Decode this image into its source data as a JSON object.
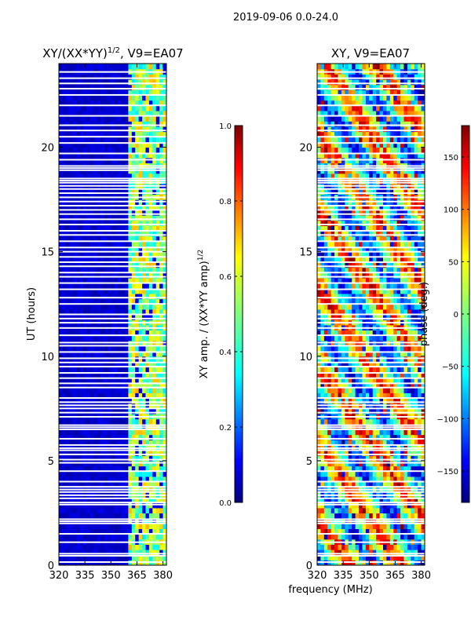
{
  "suptitle": "2019-09-06 0.0-24.0",
  "colors": {
    "jet": [
      "#00007f",
      "#0000ff",
      "#007fff",
      "#00ffff",
      "#7fff7f",
      "#ffff00",
      "#ff7f00",
      "#ff0000",
      "#7f0000"
    ],
    "background": "#ffffff",
    "gap": "#ffffff"
  },
  "chart_data": [
    {
      "type": "heatmap",
      "title_prefix": "XY/(XX*YY)",
      "title_sup": "1/2",
      "title_suffix": ", V9=EA07",
      "xlabel": "",
      "ylabel": "UT (hours)",
      "xlim": [
        320,
        382
      ],
      "ylim": [
        0,
        24
      ],
      "xticks": [
        320,
        335,
        350,
        365,
        380
      ],
      "yticks": [
        0,
        5,
        10,
        15,
        20
      ],
      "colorbar": {
        "label_text": "XY amp. / (XX*YY amp)",
        "label_sup": "1/2",
        "range": [
          0.0,
          1.0
        ],
        "ticks": [
          "0.0",
          "0.2",
          "0.4",
          "0.6",
          "0.8",
          "1.0"
        ]
      },
      "description": "Normalized cross-correlation amplitude: mostly low (~0.05) below 359 MHz, high (0.3-0.7) in bands between 360 and 380 MHz."
    },
    {
      "type": "heatmap",
      "title": "XY, V9=EA07",
      "xlabel": "frequency (MHz)",
      "ylabel": "",
      "xlim": [
        320,
        382
      ],
      "ylim": [
        0,
        24
      ],
      "xticks": [
        320,
        335,
        350,
        365,
        380
      ],
      "yticks": [
        0,
        5,
        10,
        15,
        20
      ],
      "colorbar": {
        "label_text": "phase (deg.)",
        "range": [
          -180,
          180
        ],
        "ticks": [
          "−150",
          "−100",
          "−50",
          "0",
          "50",
          "100",
          "150"
        ]
      },
      "description": "Cross-correlation phase, noisy values spanning -180 to 180 degrees."
    }
  ],
  "gaps_hours": [
    0.15,
    0.45,
    0.55,
    1.1,
    1.5,
    2.0,
    2.1,
    2.2,
    2.9,
    3.0,
    3.2,
    3.35,
    3.5,
    3.62,
    3.75,
    4.0,
    4.5,
    4.9,
    5.05,
    5.3,
    5.5,
    5.6,
    5.75,
    6.05,
    6.5,
    6.6,
    6.7,
    7.1,
    7.3,
    7.5,
    7.65,
    7.8,
    8.0,
    8.5,
    8.7,
    8.95,
    9.2,
    9.5,
    9.7,
    9.9,
    10.2,
    10.5,
    10.65,
    11.0,
    11.35,
    11.6,
    11.8,
    12.0,
    12.5,
    12.8,
    13.2,
    13.5,
    13.8,
    14.0,
    14.3,
    14.5,
    14.75,
    15.0,
    15.2,
    15.5,
    15.8,
    16.0,
    16.3,
    16.55,
    16.8,
    17.0,
    17.2,
    17.4,
    17.6,
    17.8,
    18.0,
    18.15,
    18.3,
    18.4,
    18.5,
    18.9,
    19.0,
    19.1,
    19.4,
    19.7,
    20.2,
    20.5,
    20.8,
    21.05,
    21.5,
    22.0,
    22.5,
    22.8,
    23.05,
    23.3,
    23.6
  ]
}
